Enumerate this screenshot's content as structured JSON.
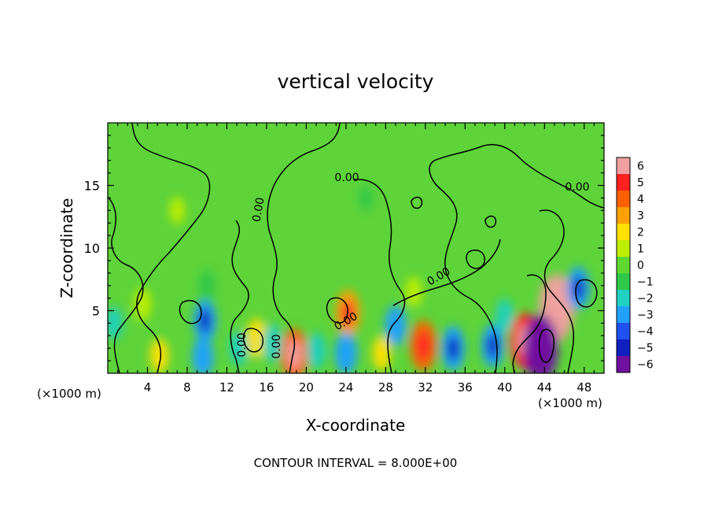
{
  "chart_data": {
    "type": "heatmap",
    "title": "vertical velocity",
    "xlabel": "X-coordinate",
    "ylabel": "Z-coordinate",
    "x_unit_label": "(×1000 m)",
    "footer": "CONTOUR INTERVAL = 8.000E+00",
    "xlim": [
      0,
      50
    ],
    "ylim": [
      0,
      20
    ],
    "x_ticks": [
      4,
      8,
      12,
      16,
      20,
      24,
      28,
      32,
      36,
      40,
      44,
      48
    ],
    "x_tick_labels": [
      "4",
      "8",
      "12",
      "16",
      "20",
      "24",
      "28",
      "32",
      "36",
      "40",
      "44",
      "48"
    ],
    "y_ticks": [
      5,
      10,
      15
    ],
    "y_tick_labels": [
      "5",
      "10",
      "15"
    ],
    "contour_labels": [
      "0.00",
      "0.00",
      "0.00",
      "0.00",
      "0.00",
      "0.00",
      "0.00"
    ],
    "colorbar": {
      "min": -6,
      "max": 6,
      "tick_values": [
        6,
        5,
        4,
        3,
        2,
        1,
        0,
        -1,
        -2,
        -3,
        -4,
        -5,
        -6
      ],
      "tick_labels": [
        "6",
        "5",
        "4",
        "3",
        "2",
        "1",
        "0",
        "−1",
        "−2",
        "−3",
        "−4",
        "−5",
        "−6"
      ],
      "colors": [
        "#f0a0a0",
        "#ff2020",
        "#ff6000",
        "#ffa000",
        "#ffe000",
        "#c0ee00",
        "#60d830",
        "#30c848",
        "#20d0c0",
        "#20a0ff",
        "#2050f0",
        "#1020c0",
        "#7010a0"
      ]
    },
    "features": [
      {
        "x": 45.2,
        "z": 5.2,
        "value": 6.5
      },
      {
        "x": 42.0,
        "z": 2.6,
        "value": 4.8
      },
      {
        "x": 43.6,
        "z": 2.0,
        "value": -6.5
      },
      {
        "x": 31.8,
        "z": 2.2,
        "value": 4.0
      },
      {
        "x": 18.8,
        "z": 1.5,
        "value": 4.2
      },
      {
        "x": 15.0,
        "z": 2.8,
        "value": 2.5
      },
      {
        "x": 24.2,
        "z": 4.8,
        "value": 3.5
      },
      {
        "x": 5.2,
        "z": 1.4,
        "value": 1.8
      },
      {
        "x": 27.6,
        "z": 1.6,
        "value": 1.8
      },
      {
        "x": 9.6,
        "z": 1.3,
        "value": -2.5
      },
      {
        "x": 9.8,
        "z": 4.2,
        "value": -3.0
      },
      {
        "x": 24.0,
        "z": 1.6,
        "value": -2.8
      },
      {
        "x": 21.0,
        "z": 1.8,
        "value": -2.0
      },
      {
        "x": 29.0,
        "z": 3.8,
        "value": -2.6
      },
      {
        "x": 34.8,
        "z": 2.0,
        "value": -3.2
      },
      {
        "x": 38.8,
        "z": 2.2,
        "value": -3.0
      },
      {
        "x": 47.4,
        "z": 6.8,
        "value": -3.0
      },
      {
        "x": 16.6,
        "z": 2.4,
        "value": -2.2
      },
      {
        "x": 13.2,
        "z": 2.0,
        "value": -1.8
      },
      {
        "x": 40.0,
        "z": 4.6,
        "value": -1.6
      },
      {
        "x": 0.6,
        "z": 4.0,
        "value": -1.5
      },
      {
        "x": 10.0,
        "z": 7.0,
        "value": -1.2
      },
      {
        "x": 30.8,
        "z": 6.5,
        "value": 1.2
      },
      {
        "x": 3.5,
        "z": 5.5,
        "value": 1.5
      },
      {
        "x": 26.0,
        "z": 14.0,
        "value": -0.5
      },
      {
        "x": 7.0,
        "z": 13.0,
        "value": 0.8
      }
    ]
  }
}
